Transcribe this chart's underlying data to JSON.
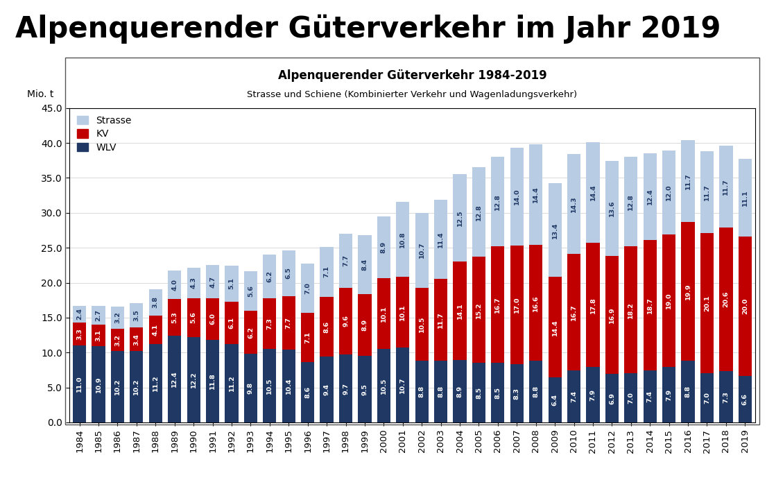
{
  "title_main": "Alpenquerender Güterverkehr im Jahr 2019",
  "chart_title": "Alpenquerender Güterverkehr 1984-2019",
  "chart_subtitle": "Strasse und Schiene (Kombinierter Verkehr und Wagenladungsverkehr)",
  "ylabel": "Mio. t",
  "years": [
    1984,
    1985,
    1986,
    1987,
    1988,
    1989,
    1990,
    1991,
    1992,
    1993,
    1994,
    1995,
    1996,
    1997,
    1998,
    1999,
    2000,
    2001,
    2002,
    2003,
    2004,
    2005,
    2006,
    2007,
    2008,
    2009,
    2010,
    2011,
    2012,
    2013,
    2014,
    2015,
    2016,
    2017,
    2018,
    2019
  ],
  "WLV": [
    11.0,
    10.9,
    10.2,
    10.2,
    11.2,
    12.4,
    12.2,
    11.8,
    11.2,
    9.8,
    10.5,
    10.4,
    8.6,
    9.4,
    9.7,
    9.5,
    10.5,
    10.7,
    8.8,
    8.8,
    8.9,
    8.5,
    8.5,
    8.3,
    8.8,
    6.4,
    7.4,
    7.9,
    6.9,
    7.0,
    7.4,
    7.9,
    8.8,
    7.0,
    7.3,
    6.6
  ],
  "KV": [
    3.3,
    3.1,
    3.2,
    3.4,
    4.1,
    5.3,
    5.6,
    6.0,
    6.1,
    6.2,
    7.3,
    7.7,
    7.1,
    8.6,
    9.6,
    8.9,
    10.1,
    10.1,
    10.5,
    11.7,
    14.1,
    15.2,
    16.7,
    17.0,
    16.6,
    14.4,
    16.7,
    17.8,
    16.9,
    18.2,
    18.7,
    19.0,
    19.9,
    20.1,
    20.6,
    20.0
  ],
  "Strasse": [
    2.4,
    2.7,
    3.2,
    3.5,
    3.8,
    4.0,
    4.3,
    4.7,
    5.1,
    5.6,
    6.2,
    6.5,
    7.0,
    7.1,
    7.7,
    8.4,
    8.9,
    10.8,
    10.7,
    11.4,
    12.5,
    12.8,
    12.8,
    14.0,
    14.4,
    13.4,
    14.3,
    14.4,
    13.6,
    12.8,
    12.4,
    12.0,
    11.7,
    11.7,
    11.7,
    11.1
  ],
  "color_WLV": "#1f3864",
  "color_KV": "#c00000",
  "color_Strasse": "#b8cce4",
  "ylim": [
    0,
    45
  ],
  "yticks": [
    0.0,
    5.0,
    10.0,
    15.0,
    20.0,
    25.0,
    30.0,
    35.0,
    40.0,
    45.0
  ],
  "bar_width": 0.7,
  "title_fontsize": 30,
  "chart_title_fontsize": 12,
  "chart_subtitle_fontsize": 10,
  "bar_label_fontsize": 6.8,
  "axis_tick_fontsize": 9.5,
  "ytick_fontsize": 10
}
